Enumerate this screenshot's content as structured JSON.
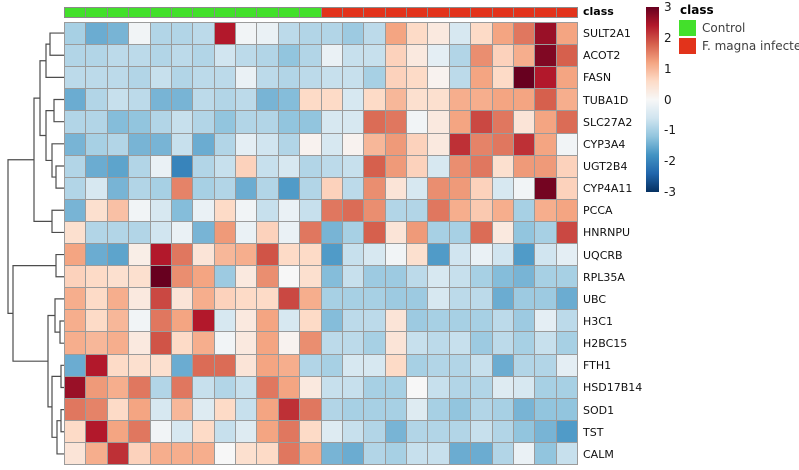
{
  "annotation_bar": {
    "label": "class"
  },
  "colorbar": {
    "ticks": [
      "3",
      "2",
      "1",
      "0",
      "-1",
      "-2",
      "-3"
    ],
    "min": -3,
    "max": 3
  },
  "class_legend": {
    "title": "class",
    "items": [
      {
        "label": "Control",
        "color": "#43E02B"
      },
      {
        "label": "F. magna infected",
        "color": "#E2331B"
      }
    ]
  },
  "chart_data": {
    "type": "heatmap",
    "title": "",
    "rows": [
      "SULT2A1",
      "ACOT2",
      "FASN",
      "TUBA1D",
      "SLC27A2",
      "CYP3A4",
      "UGT2B4",
      "CYP4A11",
      "PCCA",
      "HNRNPU",
      "UQCRB",
      "RPL35A",
      "UBC",
      "H3C1",
      "H2BC15",
      "FTH1",
      "HSD17B14",
      "SOD1",
      "TST",
      "CALM"
    ],
    "column_groups": [
      {
        "name": "Control",
        "color": "#43E02B",
        "count": 12
      },
      {
        "name": "F. magna infected",
        "color": "#E2331B",
        "count": 12
      }
    ],
    "scale": {
      "min": -3,
      "max": 3
    },
    "legend_position": "right",
    "colormap": {
      "name": "RdBu reversed",
      "stops": [
        [
          -3.0,
          "#053061"
        ],
        [
          -2.4,
          "#2166AC"
        ],
        [
          -1.8,
          "#4393C3"
        ],
        [
          -1.2,
          "#92C5DE"
        ],
        [
          -0.6,
          "#D1E5F0"
        ],
        [
          0.0,
          "#F7F7F7"
        ],
        [
          0.6,
          "#FDDBC7"
        ],
        [
          1.2,
          "#F4A582"
        ],
        [
          1.8,
          "#D6604D"
        ],
        [
          2.4,
          "#B2182B"
        ],
        [
          3.0,
          "#67001F"
        ]
      ]
    },
    "values": [
      [
        -1.0,
        -1.5,
        -1.4,
        -0.1,
        -0.9,
        -0.9,
        -0.8,
        2.4,
        -0.1,
        -0.2,
        -0.8,
        -0.9,
        -0.9,
        -1.1,
        -0.8,
        1.2,
        0.6,
        0.3,
        -0.5,
        0.6,
        1.2,
        1.6,
        2.6,
        1.2
      ],
      [
        -0.9,
        -0.9,
        -0.8,
        -0.8,
        -0.9,
        -0.8,
        -0.9,
        -0.6,
        -0.8,
        -0.9,
        -1.2,
        -0.9,
        -0.2,
        -0.7,
        -0.7,
        0.7,
        0.3,
        -0.3,
        -0.9,
        1.4,
        0.7,
        1.1,
        2.8,
        1.8
      ],
      [
        -0.8,
        -0.8,
        -0.8,
        -0.9,
        -0.7,
        -0.9,
        -0.8,
        -0.8,
        -0.2,
        -0.8,
        -0.9,
        -0.8,
        -0.7,
        -0.7,
        -1.0,
        0.7,
        0.6,
        0.1,
        -0.8,
        1.2,
        0.6,
        3.0,
        2.4,
        1.2
      ],
      [
        -1.5,
        -0.9,
        -0.7,
        -0.8,
        -1.4,
        -1.4,
        -0.8,
        -0.9,
        -0.8,
        -1.4,
        -1.3,
        0.6,
        0.6,
        -0.5,
        0.6,
        1.0,
        0.5,
        0.5,
        1.1,
        1.1,
        1.2,
        1.2,
        1.8,
        1.1
      ],
      [
        -0.9,
        -0.9,
        -1.3,
        -1.2,
        -0.9,
        -0.7,
        -0.9,
        -1.2,
        -0.9,
        -0.9,
        -1.2,
        -1.2,
        -0.5,
        -0.5,
        1.7,
        1.6,
        -0.1,
        0.3,
        1.2,
        2.0,
        1.6,
        0.4,
        1.2,
        1.7
      ],
      [
        -1.4,
        -1.0,
        -0.9,
        -1.4,
        -1.4,
        -0.7,
        -1.5,
        -0.9,
        -0.3,
        -0.6,
        -0.9,
        0.1,
        -0.5,
        0.1,
        1.0,
        1.3,
        0.7,
        0.3,
        2.2,
        1.5,
        1.6,
        2.2,
        1.2,
        -0.1
      ],
      [
        -0.9,
        -1.5,
        -1.6,
        -0.9,
        -0.2,
        -2.0,
        -0.9,
        -0.7,
        0.7,
        -0.7,
        -0.5,
        -0.9,
        -0.8,
        -0.7,
        1.8,
        1.3,
        0.7,
        -0.5,
        1.4,
        1.6,
        0.5,
        1.3,
        1.3,
        0.7
      ],
      [
        -0.9,
        -0.5,
        -1.4,
        -0.9,
        -1.0,
        1.5,
        -1.0,
        -0.9,
        -1.5,
        -0.9,
        -1.7,
        -0.9,
        0.7,
        -0.8,
        1.4,
        0.4,
        -0.5,
        1.4,
        1.3,
        0.7,
        -0.5,
        -0.1,
        2.9,
        0.7
      ],
      [
        -1.4,
        0.5,
        0.9,
        -0.1,
        -0.5,
        -1.3,
        -0.2,
        0.6,
        -0.1,
        -0.7,
        -0.2,
        -0.7,
        1.6,
        1.7,
        1.4,
        -0.9,
        -0.9,
        1.6,
        1.1,
        0.8,
        1.1,
        -1.0,
        1.1,
        1.2
      ],
      [
        0.5,
        -0.9,
        -0.9,
        -0.9,
        -0.6,
        -0.2,
        -1.4,
        1.3,
        -0.2,
        0.7,
        -0.2,
        1.6,
        -1.4,
        -1.0,
        1.8,
        0.4,
        1.3,
        -1.0,
        -1.0,
        1.7,
        0.3,
        -1.2,
        -1.0,
        2.0
      ],
      [
        1.2,
        -1.5,
        -1.6,
        0.2,
        2.4,
        1.6,
        0.4,
        1.0,
        1.1,
        1.9,
        0.6,
        0.6,
        -1.7,
        -0.7,
        -0.5,
        -0.1,
        0.5,
        -1.7,
        -0.6,
        -0.2,
        -0.6,
        -1.7,
        -0.6,
        -0.3
      ],
      [
        0.7,
        0.6,
        0.5,
        0.5,
        3.0,
        1.4,
        1.2,
        -1.1,
        0.3,
        1.4,
        0.0,
        0.5,
        -1.3,
        -0.7,
        -1.1,
        -1.1,
        -0.8,
        -0.5,
        -0.7,
        -1.0,
        -1.3,
        -1.4,
        -1.0,
        -1.0
      ],
      [
        1.1,
        0.6,
        1.1,
        0.3,
        2.0,
        0.4,
        1.1,
        0.7,
        0.6,
        0.6,
        2.0,
        1.1,
        -1.0,
        -1.0,
        -1.0,
        -1.1,
        -1.1,
        -0.5,
        -0.8,
        -0.8,
        -1.5,
        -1.1,
        -1.1,
        -1.5
      ],
      [
        1.1,
        0.6,
        1.0,
        -0.1,
        1.6,
        1.2,
        2.4,
        -0.5,
        0.3,
        1.2,
        -0.5,
        0.6,
        -1.3,
        -0.8,
        -0.8,
        0.4,
        -1.1,
        -1.0,
        -1.0,
        -1.0,
        -0.8,
        -1.1,
        -0.3,
        -0.8
      ],
      [
        1.1,
        1.0,
        1.1,
        0.3,
        1.9,
        0.6,
        1.1,
        -0.1,
        0.3,
        1.2,
        0.1,
        1.4,
        -0.8,
        -0.8,
        -1.0,
        0.4,
        -0.7,
        -0.8,
        -0.7,
        -1.1,
        -0.8,
        -1.0,
        -0.7,
        -1.0
      ],
      [
        -1.5,
        2.4,
        0.6,
        0.5,
        0.5,
        -1.5,
        1.7,
        1.7,
        0.4,
        1.2,
        1.1,
        -0.9,
        -1.0,
        -0.5,
        -0.5,
        0.6,
        -1.0,
        -0.9,
        -0.9,
        -0.7,
        -1.5,
        -0.9,
        -0.9,
        -0.3
      ],
      [
        2.6,
        1.3,
        1.1,
        1.6,
        -0.9,
        1.6,
        -0.7,
        -0.9,
        -0.7,
        1.6,
        1.2,
        0.3,
        -0.7,
        -0.7,
        -1.0,
        -1.0,
        0.0,
        -0.7,
        -0.9,
        -0.9,
        -0.4,
        -0.5,
        -1.0,
        -1.0
      ],
      [
        1.6,
        1.5,
        0.6,
        1.2,
        -0.5,
        1.0,
        -0.4,
        0.6,
        -0.7,
        1.2,
        2.2,
        1.6,
        -0.9,
        -1.0,
        -1.0,
        -1.0,
        -0.4,
        -1.0,
        -1.2,
        -0.9,
        -1.0,
        -1.4,
        -1.2,
        -1.2
      ],
      [
        0.6,
        2.4,
        1.2,
        1.6,
        -0.1,
        -0.5,
        0.6,
        -0.7,
        -0.4,
        1.2,
        1.6,
        0.6,
        -0.4,
        -0.7,
        -0.9,
        -1.4,
        -0.9,
        -0.9,
        -0.9,
        -0.7,
        -0.9,
        -1.2,
        -1.4,
        -1.7
      ],
      [
        0.4,
        1.1,
        2.2,
        0.7,
        1.1,
        1.1,
        1.1,
        0.0,
        0.5,
        0.6,
        1.6,
        1.1,
        -1.4,
        -1.5,
        -0.9,
        -1.0,
        -0.7,
        -0.7,
        -1.5,
        -1.5,
        -0.9,
        -0.2,
        -1.2,
        -0.7
      ]
    ],
    "row_dendrogram": {
      "merges": [
        [
          "L1",
          "L2",
          50
        ],
        [
          "M0",
          "L3",
          46
        ],
        [
          "L4",
          "L5",
          54
        ],
        [
          "L7",
          "L8",
          56
        ],
        [
          "L6",
          "M3",
          52
        ],
        [
          "M2",
          "M4",
          46
        ],
        [
          "M1",
          "M5",
          40
        ],
        [
          "L9",
          "L10",
          52
        ],
        [
          "M6",
          "M7",
          34
        ],
        [
          "L11",
          "L12",
          56
        ],
        [
          "L14",
          "L15",
          60
        ],
        [
          "L13",
          "M10",
          55
        ],
        [
          "L16",
          "L17",
          61
        ],
        [
          "L18",
          "L19",
          61
        ],
        [
          "M13",
          "L20",
          57
        ],
        [
          "M12",
          "M14",
          52
        ],
        [
          "M11",
          "M15",
          48
        ],
        [
          "M9",
          "M16",
          13
        ],
        [
          "M8",
          "M17",
          8
        ]
      ]
    }
  }
}
